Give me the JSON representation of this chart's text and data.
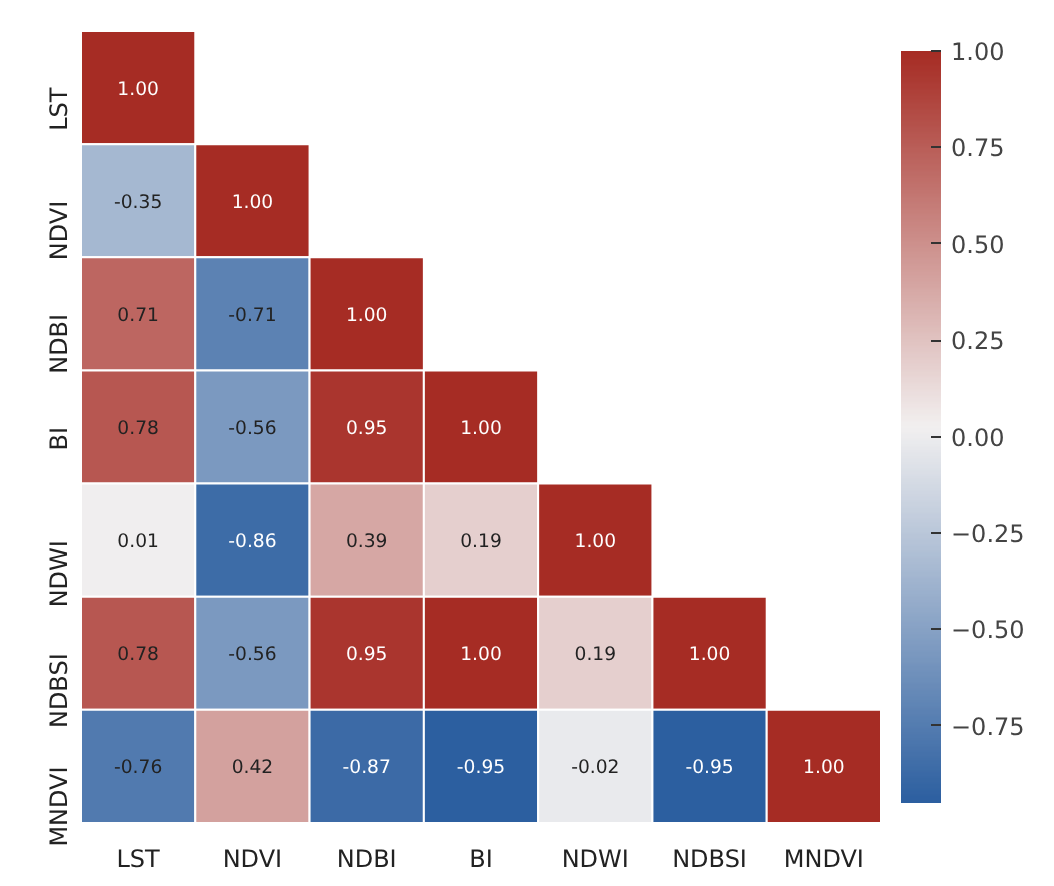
{
  "chart_data": {
    "type": "heatmap",
    "categories": [
      "LST",
      "NDVI",
      "NDBI",
      "BI",
      "NDWI",
      "NDBSI",
      "MNDVI"
    ],
    "y_categories": [
      "LST",
      "NDVI",
      "NDBI",
      "BI",
      "NDWI",
      "NDBSI",
      "MNDVI"
    ],
    "cells": [
      [
        1.0,
        null,
        null,
        null,
        null,
        null,
        null
      ],
      [
        -0.35,
        1.0,
        null,
        null,
        null,
        null,
        null
      ],
      [
        0.71,
        -0.71,
        1.0,
        null,
        null,
        null,
        null
      ],
      [
        0.78,
        -0.56,
        0.95,
        1.0,
        null,
        null,
        null
      ],
      [
        0.01,
        -0.86,
        0.39,
        0.19,
        1.0,
        null,
        null
      ],
      [
        0.78,
        -0.56,
        0.95,
        1.0,
        0.19,
        1.0,
        null
      ],
      [
        -0.76,
        0.42,
        -0.87,
        -0.95,
        -0.02,
        -0.95,
        1.0
      ]
    ],
    "cell_labels": [
      [
        "1.00",
        null,
        null,
        null,
        null,
        null,
        null
      ],
      [
        "-0.35",
        "1.00",
        null,
        null,
        null,
        null,
        null
      ],
      [
        "0.71",
        "-0.71",
        "1.00",
        null,
        null,
        null,
        null
      ],
      [
        "0.78",
        "-0.56",
        "0.95",
        "1.00",
        null,
        null,
        null
      ],
      [
        "0.01",
        "-0.86",
        "0.39",
        "0.19",
        "1.00",
        null,
        null
      ],
      [
        "0.78",
        "-0.56",
        "0.95",
        "1.00",
        "0.19",
        "1.00",
        null
      ],
      [
        "-0.76",
        "0.42",
        "-0.87",
        "-0.95",
        "-0.02",
        "-0.95",
        "1.00"
      ]
    ],
    "clim": [
      -0.95,
      1.0
    ],
    "cticks": [
      {
        "value": 1.0,
        "label": "1.00"
      },
      {
        "value": 0.75,
        "label": "0.75"
      },
      {
        "value": 0.5,
        "label": "0.50"
      },
      {
        "value": 0.25,
        "label": "0.25"
      },
      {
        "value": 0.0,
        "label": "0.00"
      },
      {
        "value": -0.25,
        "label": "−0.25"
      },
      {
        "value": -0.5,
        "label": "−0.50"
      },
      {
        "value": -0.75,
        "label": "−0.75"
      }
    ]
  }
}
